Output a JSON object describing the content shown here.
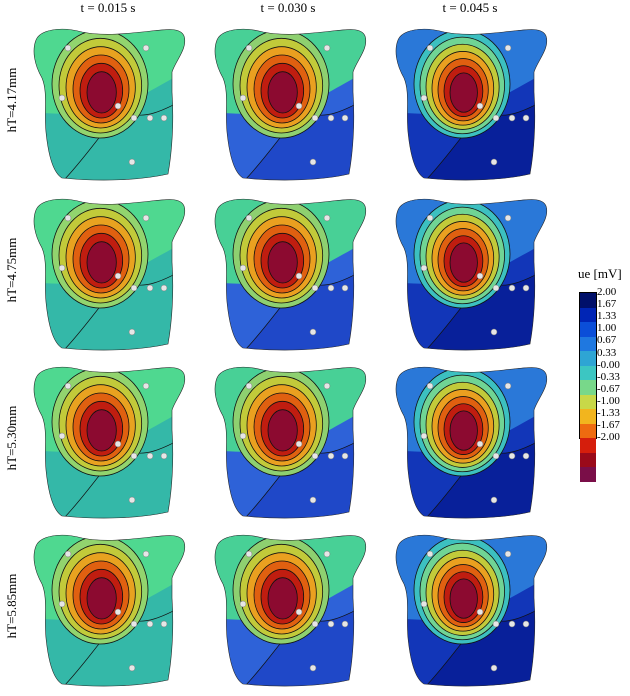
{
  "columns": [
    "t = 0.015 s",
    "t = 0.030 s",
    "t = 0.045 s"
  ],
  "rows": [
    {
      "label": "hT=4.17mm"
    },
    {
      "label": "hT=4.75mm"
    },
    {
      "label": "hT=5.30mm"
    },
    {
      "label": "hT=5.85mm"
    }
  ],
  "legend": {
    "title": "ue [mV]",
    "ticks": [
      "2.00",
      "1.67",
      "1.33",
      "1.00",
      "0.67",
      "0.33",
      "-0.00",
      "-0.33",
      "-0.67",
      "-1.00",
      "-1.33",
      "-1.67",
      "-2.00"
    ],
    "colors": [
      "#00106a",
      "#0025b5",
      "#0b4ed8",
      "#1f78e0",
      "#2ea5d4",
      "#3cc6c2",
      "#78d88a",
      "#c8d848",
      "#f2b51e",
      "#ee6b10",
      "#d51e0c",
      "#9a0a1a",
      "#7a0e48"
    ]
  },
  "panels": [
    [
      {
        "bg": "#34b8a8",
        "top": "#4fd890",
        "contours": [
          "#92d46e",
          "#c2ca3a",
          "#e8a220",
          "#e06010",
          "#c01d10",
          "#8c0a30"
        ],
        "lower": "#34b8a8"
      },
      {
        "bg": "#2e62d8",
        "top": "#48d096",
        "contours": [
          "#8ed070",
          "#c2ca3a",
          "#eaa020",
          "#e06010",
          "#c01d10",
          "#8c0a30"
        ],
        "lower": "#1f48c8"
      },
      {
        "bg": "#1236b8",
        "top": "#2a78d8",
        "contours": [
          "#3cc0c0",
          "#70d494",
          "#c2ca3a",
          "#eaa020",
          "#e06010",
          "#c01d10",
          "#8c0a30"
        ],
        "lower": "#08209a"
      }
    ],
    [
      {
        "bg": "#34b8a8",
        "top": "#4fd890",
        "contours": [
          "#92d46e",
          "#c2ca3a",
          "#e8a220",
          "#e06010",
          "#c01d10",
          "#8c0a30"
        ],
        "lower": "#34b8a8"
      },
      {
        "bg": "#2e62d8",
        "top": "#48d096",
        "contours": [
          "#8ed070",
          "#c2ca3a",
          "#eaa020",
          "#e06010",
          "#c01d10",
          "#8c0a30"
        ],
        "lower": "#1f48c8"
      },
      {
        "bg": "#1236b8",
        "top": "#2a78d8",
        "contours": [
          "#3cc0c0",
          "#70d494",
          "#c2ca3a",
          "#eaa020",
          "#e06010",
          "#c01d10",
          "#8c0a30"
        ],
        "lower": "#08209a"
      }
    ],
    [
      {
        "bg": "#34b8a8",
        "top": "#4fd890",
        "contours": [
          "#92d46e",
          "#c2ca3a",
          "#e8a220",
          "#e06010",
          "#c01d10",
          "#8c0a30"
        ],
        "lower": "#34b8a8"
      },
      {
        "bg": "#2e62d8",
        "top": "#48d096",
        "contours": [
          "#8ed070",
          "#c2ca3a",
          "#eaa020",
          "#e06010",
          "#c01d10",
          "#8c0a30"
        ],
        "lower": "#1f48c8"
      },
      {
        "bg": "#1236b8",
        "top": "#2a78d8",
        "contours": [
          "#3cc0c0",
          "#70d494",
          "#c2ca3a",
          "#eaa020",
          "#e06010",
          "#c01d10",
          "#8c0a30"
        ],
        "lower": "#08209a"
      }
    ],
    [
      {
        "bg": "#34b8a8",
        "top": "#4fd890",
        "contours": [
          "#92d46e",
          "#c2ca3a",
          "#e8a220",
          "#e06010",
          "#c01d10",
          "#8c0a30"
        ],
        "lower": "#34b8a8"
      },
      {
        "bg": "#2e62d8",
        "top": "#48d096",
        "contours": [
          "#8ed070",
          "#c2ca3a",
          "#eaa020",
          "#e06010",
          "#c01d10",
          "#8c0a30"
        ],
        "lower": "#1f48c8"
      },
      {
        "bg": "#1236b8",
        "top": "#2a78d8",
        "contours": [
          "#3cc0c0",
          "#70d494",
          "#c2ca3a",
          "#eaa020",
          "#e06010",
          "#c01d10",
          "#8c0a30"
        ],
        "lower": "#08209a"
      }
    ]
  ]
}
